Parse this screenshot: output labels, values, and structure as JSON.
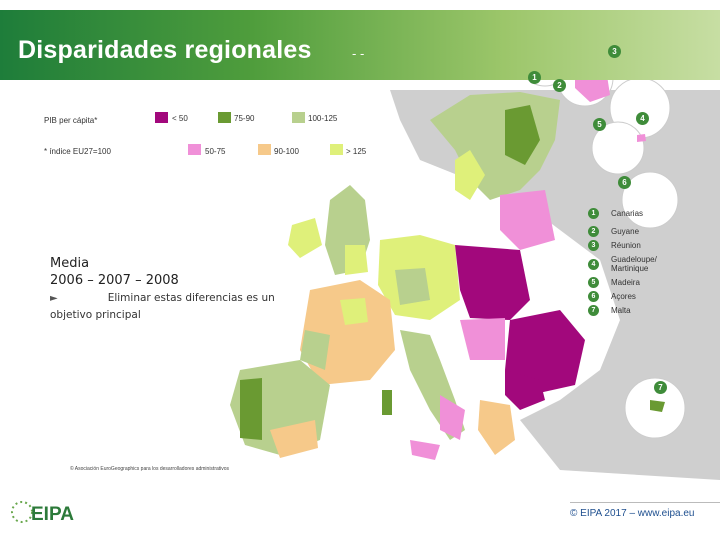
{
  "title": "Disparidades regionales",
  "title_dash": "- -",
  "legend": {
    "heading": "PIB per cápita*",
    "note": "* índice EU27=100",
    "classes": [
      {
        "label": "< 50",
        "color": "#a2087c"
      },
      {
        "label": "75-90",
        "color": "#6a9a32"
      },
      {
        "label": "100-125",
        "color": "#b8d08e"
      },
      {
        "label": "50-75",
        "color": "#f090d8"
      },
      {
        "label": "90-100",
        "color": "#f6c98a"
      },
      {
        "label": "> 125",
        "color": "#dff07a"
      }
    ]
  },
  "media": {
    "line1": "Media",
    "line2": "2006 – 2007 – 2008"
  },
  "objective": {
    "arrow": "►",
    "text": "Eliminar estas diferencias es un objetivo principal"
  },
  "credit": "© Asociación EuroGeographics para los desarrolladores administrativos",
  "regions": [
    {
      "num": "1",
      "name": "Canarias"
    },
    {
      "num": "2",
      "name": "Guyane"
    },
    {
      "num": "3",
      "name": "Réunion"
    },
    {
      "num": "4",
      "name": "Guadeloupe/ Martinique"
    },
    {
      "num": "5",
      "name": "Madeira"
    },
    {
      "num": "6",
      "name": "Açores"
    },
    {
      "num": "7",
      "name": "Malta"
    }
  ],
  "bubble_labels": [
    "1",
    "2",
    "3",
    "4",
    "5",
    "6",
    "7"
  ],
  "footer": "© EIPA 2017 – www.eipa.eu",
  "logo": "EIPA"
}
